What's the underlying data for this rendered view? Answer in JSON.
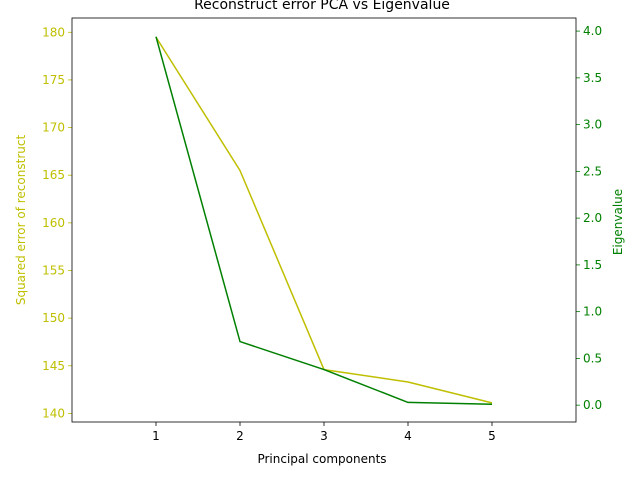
{
  "chart_data": {
    "type": "line",
    "title": "Reconstruct error PCA vs Eigenvalue",
    "xlabel": "Principal components",
    "x": [
      1,
      2,
      3,
      4,
      5
    ],
    "xlim": [
      0,
      6
    ],
    "xticks": [
      "1",
      "2",
      "3",
      "4",
      "5"
    ],
    "left_axis": {
      "label": "Squared error of reconstruct",
      "color": "#bfbf00",
      "ylim": [
        139.1,
        181.5
      ],
      "ticks": [
        "140",
        "145",
        "150",
        "155",
        "160",
        "165",
        "170",
        "175",
        "180"
      ]
    },
    "right_axis": {
      "label": "Eigenvalue",
      "color": "#008000",
      "ylim": [
        -0.18,
        4.14
      ],
      "ticks": [
        "0.0",
        "0.5",
        "1.0",
        "1.5",
        "2.0",
        "2.5",
        "3.0",
        "3.5",
        "4.0"
      ]
    },
    "series": [
      {
        "axis": "left",
        "color": "#bfbf00",
        "values": [
          179.5,
          165.5,
          144.6,
          143.3,
          141.1
        ]
      },
      {
        "axis": "right",
        "color": "#008000",
        "values": [
          3.94,
          0.68,
          0.38,
          0.03,
          0.01
        ]
      }
    ],
    "grid": false,
    "legend": false
  }
}
